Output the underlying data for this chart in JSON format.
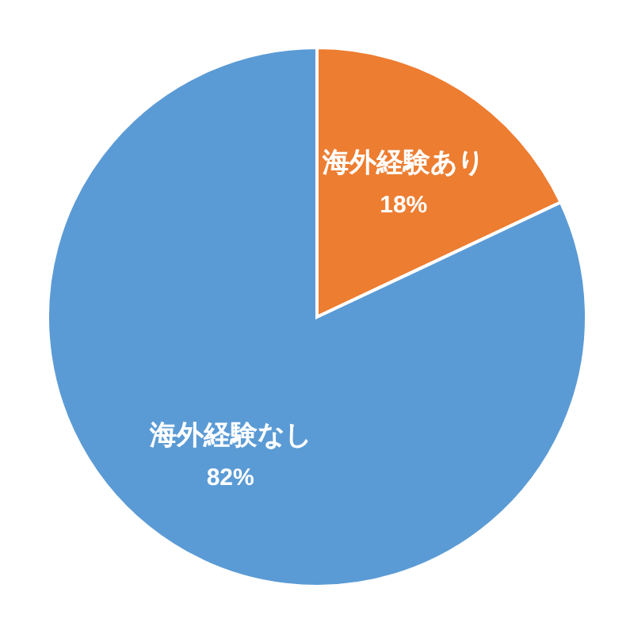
{
  "chart_data": {
    "type": "pie",
    "categories": [
      "海外経験あり",
      "海外経験なし"
    ],
    "values": [
      18,
      82
    ],
    "colors": [
      "#ed7d31",
      "#5b9bd5"
    ],
    "value_labels": [
      "18%",
      "82%"
    ]
  }
}
